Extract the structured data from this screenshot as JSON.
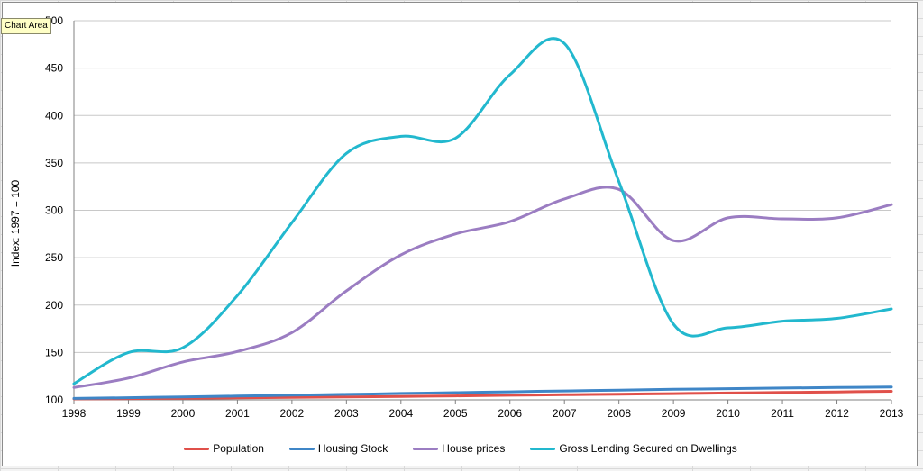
{
  "tooltip": "Chart Area",
  "chart_data": {
    "type": "line",
    "title": "",
    "xlabel": "",
    "ylabel": "Index: 1997 = 100",
    "x": [
      1998,
      1999,
      2000,
      2001,
      2002,
      2003,
      2004,
      2005,
      2006,
      2007,
      2008,
      2009,
      2010,
      2011,
      2012,
      2013
    ],
    "xticks": [
      "1998",
      "1999",
      "2000",
      "2001",
      "2002",
      "2003",
      "2004",
      "2005",
      "2006",
      "2007",
      "2008",
      "2009",
      "2010",
      "2011",
      "2012",
      "2013"
    ],
    "ylim": [
      100,
      500
    ],
    "yticks": [
      "100",
      "150",
      "200",
      "250",
      "300",
      "350",
      "400",
      "450",
      "500"
    ],
    "grid": true,
    "legend_position": "bottom",
    "series": [
      {
        "name": "Population",
        "color": "#e0504a",
        "values": [
          101,
          101.3,
          101.7,
          102.1,
          102.6,
          103.1,
          103.6,
          104.2,
          104.8,
          105.4,
          106.0,
          106.6,
          107.2,
          107.8,
          108.4,
          109.0
        ]
      },
      {
        "name": "Housing Stock",
        "color": "#3f86c7",
        "values": [
          101.5,
          102.3,
          103.1,
          104.0,
          104.9,
          105.8,
          106.7,
          107.6,
          108.5,
          109.4,
          110.3,
          111.1,
          111.8,
          112.4,
          113.0,
          113.6
        ]
      },
      {
        "name": "House prices",
        "color": "#9b7dc2",
        "values": [
          113,
          123,
          140,
          151,
          171,
          215,
          253,
          275,
          288,
          312,
          322,
          268,
          292,
          291,
          292,
          306
        ]
      },
      {
        "name": "Gross Lending Secured on Dwellings",
        "color": "#22b8ce",
        "values": [
          117,
          150,
          155,
          210,
          287,
          360,
          378,
          376,
          443,
          476,
          330,
          180,
          176,
          183,
          186,
          196
        ]
      }
    ]
  }
}
